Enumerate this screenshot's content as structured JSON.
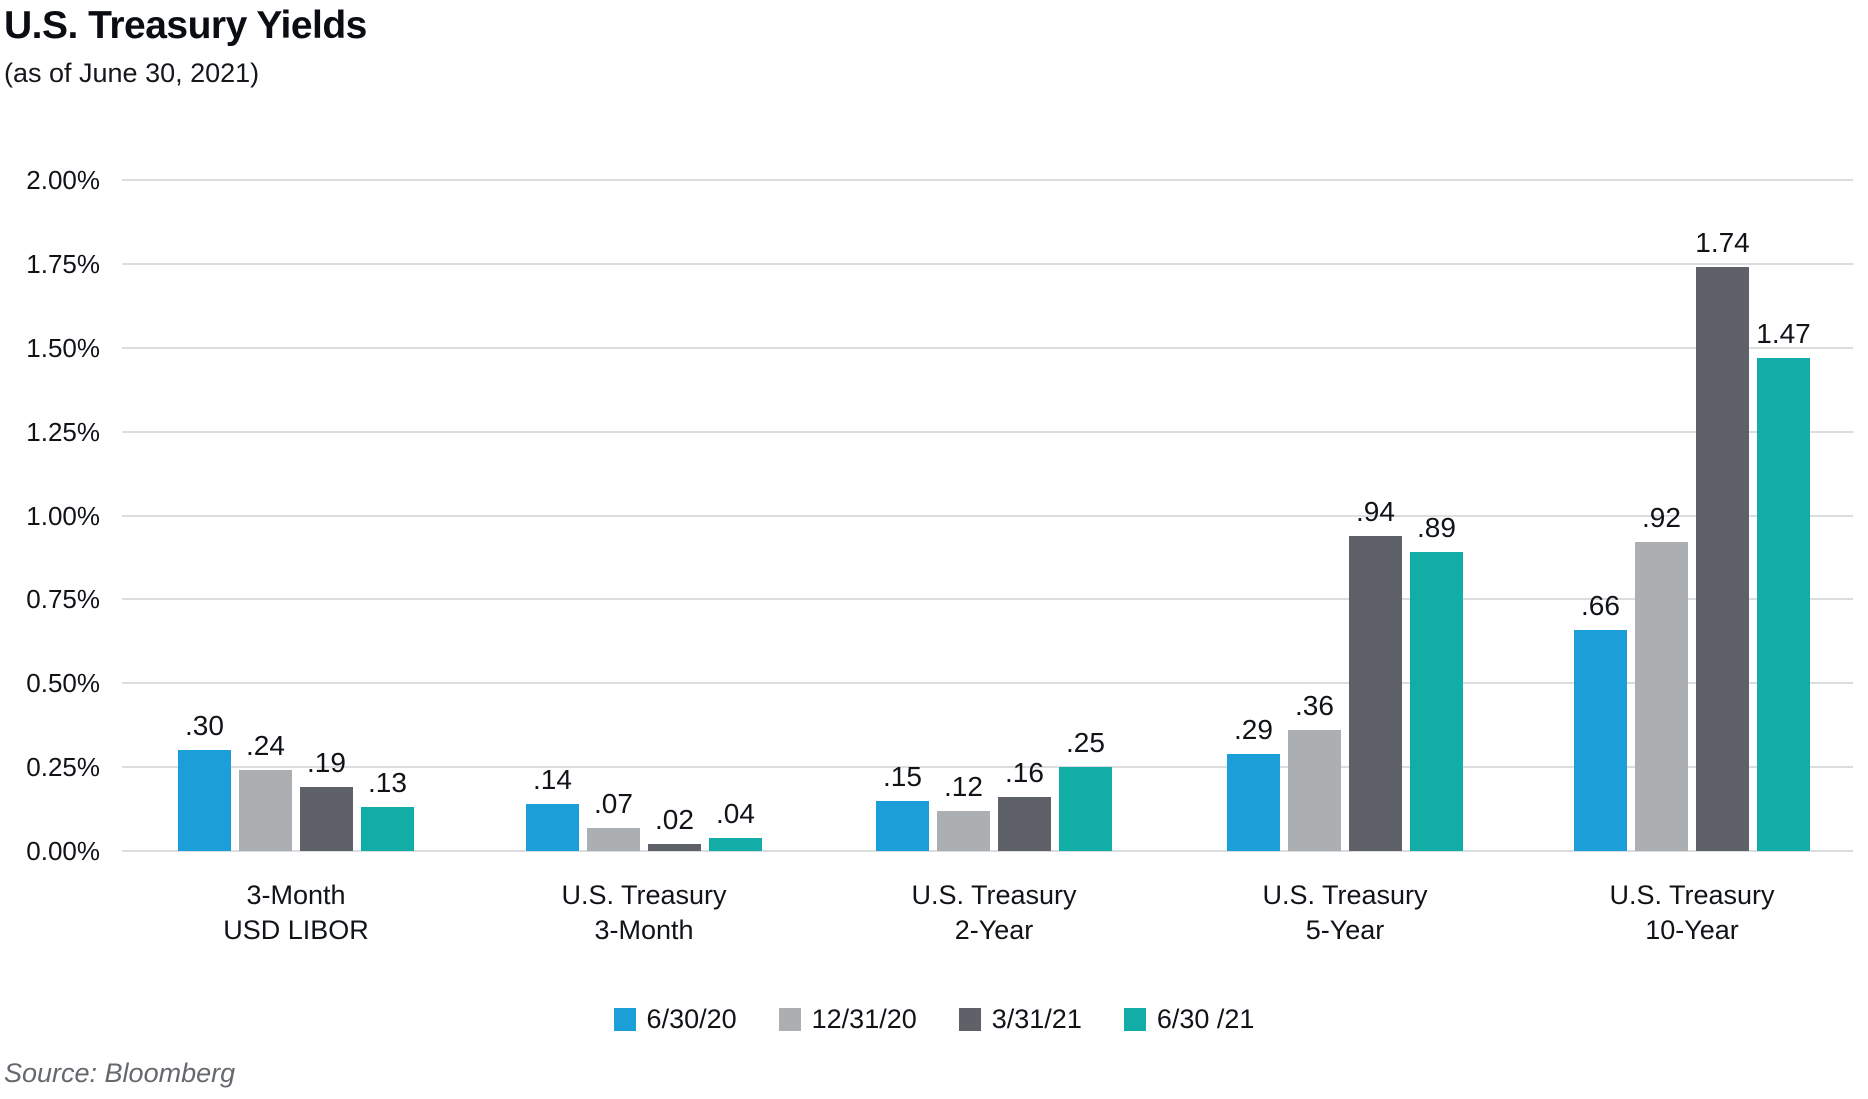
{
  "header": {
    "title": "U.S. Treasury Yields",
    "subtitle": "(as of June 30, 2021)"
  },
  "footer": {
    "source": "Source: Bloomberg"
  },
  "chart_data": {
    "type": "bar",
    "title": "U.S. Treasury Yields",
    "subtitle": "(as of June 30, 2021)",
    "categories": [
      "3-Month\nUSD LIBOR",
      "U.S. Treasury\n3-Month",
      "U.S. Treasury\n2-Year",
      "U.S. Treasury\n5-Year",
      "U.S. Treasury\n10-Year"
    ],
    "series": [
      {
        "name": "6/30/20",
        "color": "#1c9ed9",
        "values": [
          0.3,
          0.14,
          0.15,
          0.29,
          0.66
        ]
      },
      {
        "name": "12/31/20",
        "color": "#acafb2",
        "values": [
          0.24,
          0.07,
          0.12,
          0.36,
          0.92
        ]
      },
      {
        "name": "3/31/21",
        "color": "#5e6268",
        "values": [
          0.19,
          0.02,
          0.16,
          0.94,
          1.74
        ]
      },
      {
        "name": "6/30 /21",
        "color": "#12ada6",
        "values": [
          0.13,
          0.04,
          0.25,
          0.89,
          1.47
        ]
      }
    ],
    "data_labels": [
      [
        ".30",
        ".14",
        ".15",
        ".29",
        ".66"
      ],
      [
        ".24",
        ".07",
        ".12",
        ".36",
        ".92"
      ],
      [
        ".19",
        ".02",
        ".16",
        ".94",
        "1.74"
      ],
      [
        ".13",
        ".04",
        ".25",
        ".89",
        "1.47"
      ]
    ],
    "xlabel": "",
    "ylabel": "",
    "ylim": [
      0,
      2.0
    ],
    "y_tick_interval": 0.25,
    "y_tick_labels": [
      "0.00%",
      "0.25%",
      "0.50%",
      "0.75%",
      "1.00%",
      "1.25%",
      "1.50%",
      "1.75%",
      "2.00%"
    ],
    "grid": true,
    "legend_position": "bottom",
    "gridline_color": "#dcddde"
  }
}
